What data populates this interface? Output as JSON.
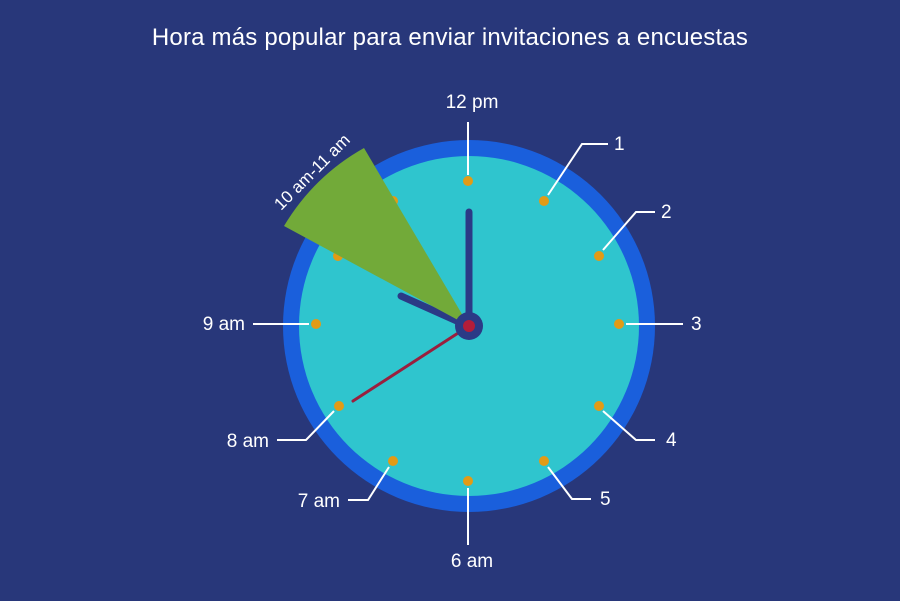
{
  "title": "Hora más popular para enviar invitaciones a encuestas",
  "highlight": {
    "label": "10 am-11 am",
    "color": "#72aa39"
  },
  "colors": {
    "background": "#28377a",
    "clock_rim": "#1a5fdc",
    "clock_face": "#2fc5ce",
    "hour_dots": "#e29b16",
    "hands": "#2b3a86",
    "second_hand": "#9a1f3e",
    "center_cap": "#b31d3a"
  },
  "hour_labels": [
    {
      "key": "h12",
      "text": "12 pm"
    },
    {
      "key": "h1",
      "text": "1"
    },
    {
      "key": "h2",
      "text": "2"
    },
    {
      "key": "h3",
      "text": "3"
    },
    {
      "key": "h4",
      "text": "4"
    },
    {
      "key": "h5",
      "text": "5"
    },
    {
      "key": "h6",
      "text": "6 am"
    },
    {
      "key": "h7",
      "text": "7 am"
    },
    {
      "key": "h8",
      "text": "8 am"
    },
    {
      "key": "h9",
      "text": "9 am"
    }
  ]
}
